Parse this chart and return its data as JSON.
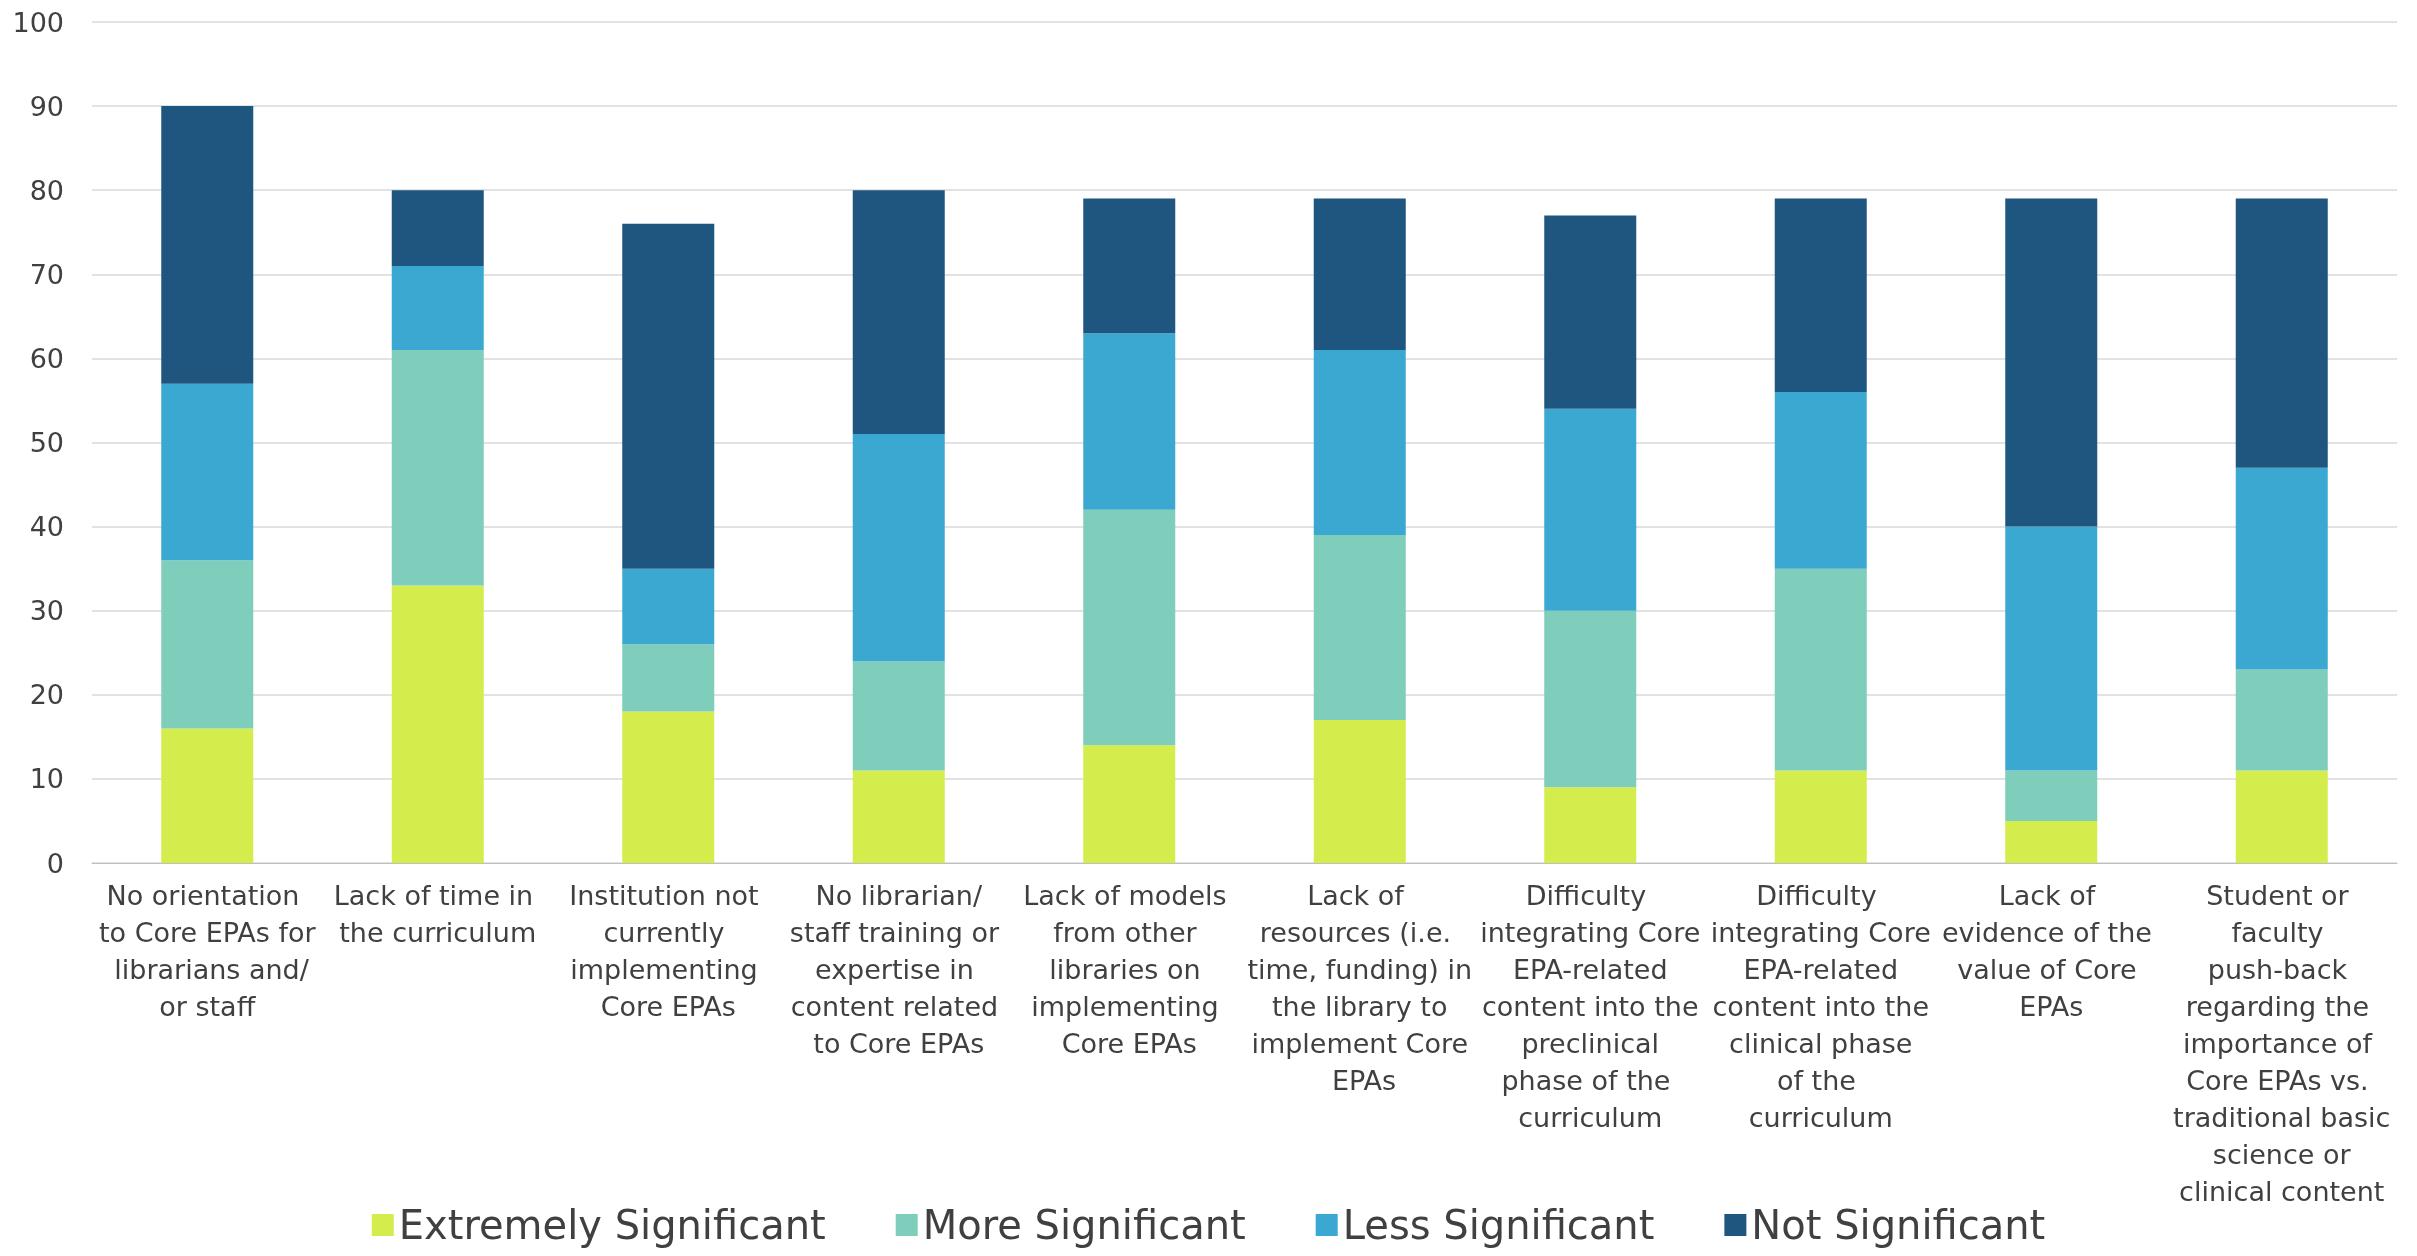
{
  "chart_data": {
    "type": "bar",
    "stacked": true,
    "categories": [
      "No orientation to Core EPAs for librarians and/or staff",
      "Lack of time in the curriculum",
      "Institution not currently implementing Core EPAs",
      "No librarian/staff training or expertise in content related to Core EPAs",
      "Lack of models from other libraries on implementing Core EPAs",
      "Lack of resources (i.e. time, funding) in the library to implement Core EPAs",
      "Difficulty integrating Core EPA-related content into the preclinical phase of the curriculum",
      "Difficulty integrating Core EPA-related content into the clinical phase of the curriculum",
      "Lack of evidence of the value of Core EPAs",
      "Student or faculty push-back regarding the importance of Core EPAs vs. traditional basic science or clinical content"
    ],
    "series": [
      {
        "name": "Extremely Significant",
        "color": "#d4ec4c",
        "values": [
          16,
          33,
          18,
          11,
          14,
          17,
          9,
          11,
          5,
          11
        ]
      },
      {
        "name": "More Significant",
        "color": "#7fcdbb",
        "values": [
          20,
          28,
          8,
          13,
          28,
          22,
          21,
          24,
          6,
          12
        ]
      },
      {
        "name": "Less Significant",
        "color": "#3aa8d1",
        "values": [
          21,
          10,
          9,
          27,
          21,
          22,
          24,
          21,
          29,
          24
        ]
      },
      {
        "name": "Not Significant",
        "color": "#1f567f",
        "values": [
          33,
          9,
          41,
          29,
          16,
          18,
          23,
          23,
          39,
          32
        ]
      }
    ],
    "ylim": [
      0,
      100
    ],
    "yticks": [
      0,
      10,
      20,
      30,
      40,
      50,
      60,
      70,
      80,
      90,
      100
    ],
    "grid": "y",
    "legend": "bottom"
  }
}
